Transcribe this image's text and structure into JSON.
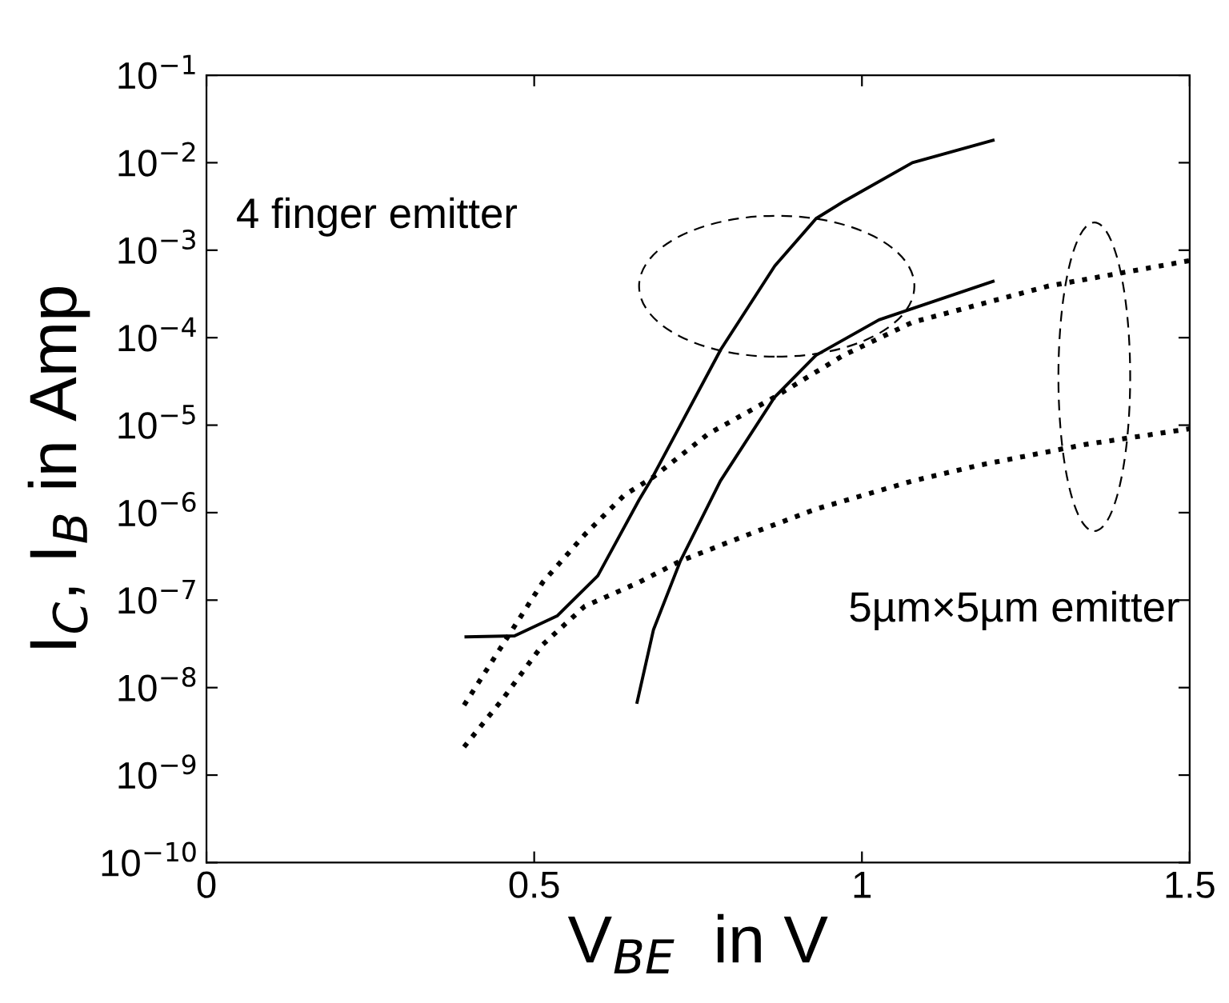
{
  "chart_data": {
    "type": "line",
    "xlabel": "V$_{BE}$  in V",
    "ylabel": "I$_{C}$, I$_{B}$ in Amp",
    "log": "y",
    "grid": false,
    "xlim": [
      0,
      1.5
    ],
    "xticks": [
      0,
      0.5,
      1,
      {
        "value": 1.5,
        "label": "1.5"
      }
    ],
    "ylim": [
      1e-10,
      0.1
    ],
    "yticks": [
      {
        "value": 1e-10,
        "label": "10$^{−10}$"
      },
      {
        "value": 1e-09,
        "label": "10$^{−9}$"
      },
      {
        "value": 1e-08,
        "label": "10$^{−8}$"
      },
      {
        "value": 1e-07,
        "label": "10$^{−7}$"
      },
      {
        "value": 1e-06,
        "label": "10$^{−6}$"
      },
      {
        "value": 1e-05,
        "label": "10$^{−5}$"
      },
      {
        "value": 0.0001,
        "label": "10$^{−4}$"
      },
      {
        "value": 0.001,
        "label": "10$^{−3}$"
      },
      {
        "value": 0.01,
        "label": "10$^{−2}$"
      },
      {
        "value": 0.1,
        "label": "10$^{−1}$"
      }
    ],
    "series": [
      {
        "color": "#000000",
        "line_style": "solid",
        "x": [
          0.396,
          0.47,
          0.535,
          0.597,
          0.66,
          0.68,
          0.785,
          0.867,
          0.93,
          0.972,
          1.077,
          1.2
        ],
        "values": [
          3.8e-08,
          3.9e-08,
          6.6e-08,
          1.9e-07,
          1.4e-06,
          2.5e-06,
          7.4e-05,
          0.00066,
          0.0023,
          0.0036,
          0.01,
          0.018
        ]
      },
      {
        "color": "#000000",
        "line_style": "solid",
        "x": [
          0.657,
          0.682,
          0.723,
          0.784,
          0.867,
          0.93,
          1.026,
          1.2
        ],
        "values": [
          6.8e-09,
          4.6e-08,
          2.8e-07,
          2.3e-06,
          2.1e-05,
          6.3e-05,
          0.00016,
          0.00044
        ]
      },
      {
        "color": "#000000",
        "line_style": "dotted",
        "x": [
          0.393,
          0.452,
          0.513,
          0.577,
          0.638,
          0.68,
          0.765,
          0.867,
          0.972,
          1.077,
          1.285,
          1.5
        ],
        "values": [
          6.3e-09,
          3.1e-08,
          1.6e-07,
          5.6e-07,
          1.6e-06,
          2.5e-06,
          7.9e-06,
          2.1e-05,
          6.3e-05,
          0.00015,
          0.00039,
          0.00076
        ]
      },
      {
        "color": "#000000",
        "line_style": "dotted",
        "x": [
          0.393,
          0.452,
          0.513,
          0.577,
          0.66,
          0.723,
          0.826,
          0.93,
          1.077,
          1.18,
          1.34,
          1.5
        ],
        "values": [
          2.1e-09,
          7.4e-09,
          3.1e-08,
          8.5e-08,
          1.6e-07,
          2.8e-07,
          5.6e-07,
          1.1e-06,
          2.3e-06,
          3.5e-06,
          6e-06,
          9.1e-06
        ]
      }
    ],
    "annotations": [
      "4 finger emitter",
      "5µm×5µm emitter"
    ]
  }
}
